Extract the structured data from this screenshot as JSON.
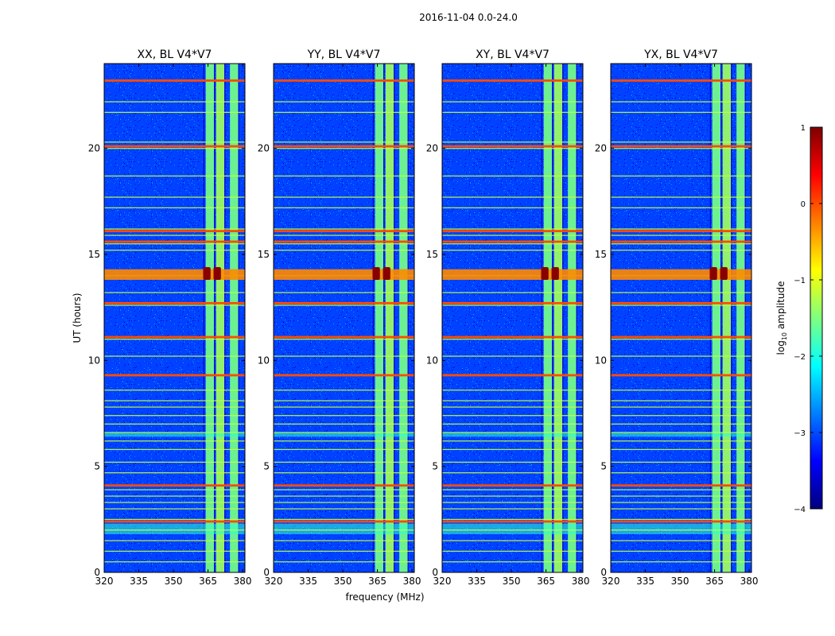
{
  "figure": {
    "suptitle": "2016-11-04 0.0-24.0"
  },
  "chart_data": [
    {
      "type": "heatmap",
      "title": "XX, BL V4*V7",
      "xlabel": "",
      "ylabel": "UT (hours)",
      "xlim": [
        320,
        381
      ],
      "ylim": [
        0,
        24
      ],
      "xticks": [
        320,
        335,
        350,
        365,
        380
      ],
      "yticks": [
        0,
        5,
        10,
        15,
        20
      ],
      "bright_channels_mhz": [
        364.0,
        368.5,
        374.5
      ],
      "hot_spots": [
        {
          "freq": 364.5,
          "ut": 14.1
        },
        {
          "freq": 369.0,
          "ut": 14.1
        }
      ]
    },
    {
      "type": "heatmap",
      "title": "YY, BL V4*V7",
      "xlabel": "frequency (MHz)",
      "ylabel": "",
      "xlim": [
        320,
        381
      ],
      "ylim": [
        0,
        24
      ],
      "xticks": [
        320,
        335,
        350,
        365,
        380
      ],
      "yticks": [
        0,
        5,
        10,
        15,
        20
      ],
      "bright_channels_mhz": [
        364.0,
        368.5,
        374.5
      ],
      "hot_spots": [
        {
          "freq": 364.5,
          "ut": 14.1
        },
        {
          "freq": 369.0,
          "ut": 14.1
        }
      ]
    },
    {
      "type": "heatmap",
      "title": "XY, BL V4*V7",
      "xlabel": "",
      "ylabel": "",
      "xlim": [
        320,
        381
      ],
      "ylim": [
        0,
        24
      ],
      "xticks": [
        320,
        335,
        350,
        365,
        380
      ],
      "yticks": [
        0,
        5,
        10,
        15,
        20
      ],
      "bright_channels_mhz": [
        364.0,
        368.5,
        374.5
      ],
      "hot_spots": [
        {
          "freq": 364.5,
          "ut": 14.1
        },
        {
          "freq": 369.0,
          "ut": 14.1
        }
      ]
    },
    {
      "type": "heatmap",
      "title": "YX, BL V4*V7",
      "xlabel": "",
      "ylabel": "",
      "xlim": [
        320,
        381
      ],
      "ylim": [
        0,
        24
      ],
      "xticks": [
        320,
        335,
        350,
        365,
        380
      ],
      "yticks": [
        0,
        5,
        10,
        15,
        20
      ],
      "bright_channels_mhz": [
        364.0,
        368.5,
        374.5
      ],
      "hot_spots": [
        {
          "freq": 364.5,
          "ut": 14.1
        },
        {
          "freq": 369.0,
          "ut": 14.1
        }
      ]
    }
  ],
  "rfi": {
    "ut_lines": [
      0.5,
      1.0,
      1.5,
      2.0,
      2.5,
      3.0,
      3.3,
      3.6,
      3.9,
      4.1,
      4.7,
      5.2,
      5.8,
      6.2,
      6.6,
      7.0,
      7.4,
      7.8,
      8.1,
      8.6,
      9.3,
      10.2,
      11.0,
      12.6,
      13.2,
      14.0,
      15.2,
      15.5,
      15.9,
      16.2,
      17.2,
      17.7,
      18.7,
      20.0,
      20.3,
      21.7,
      22.2,
      23.2
    ],
    "strong_ut_lines": [
      2.4,
      4.1,
      9.3,
      11.1,
      12.7,
      15.6,
      16.1,
      20.1,
      23.2
    ],
    "mid_ut_bands": [
      {
        "from": 1.8,
        "to": 2.3
      },
      {
        "from": 6.4,
        "to": 6.6
      }
    ]
  },
  "colorbar": {
    "label": "log",
    "label_sub": "10",
    "label_tail": " amplitude",
    "min": -4,
    "max": 1,
    "ticks": [
      {
        "value": -4,
        "label": "−4"
      },
      {
        "value": -3,
        "label": "−3"
      },
      {
        "value": -2,
        "label": "−2"
      },
      {
        "value": -1,
        "label": "−1"
      },
      {
        "value": 0,
        "label": "0"
      },
      {
        "value": 1,
        "label": "1"
      }
    ],
    "colors": [
      "#00007f",
      "#0000ff",
      "#007fff",
      "#00ffff",
      "#7fff7f",
      "#ffff00",
      "#ff7f00",
      "#ff0000",
      "#7f0000"
    ]
  }
}
